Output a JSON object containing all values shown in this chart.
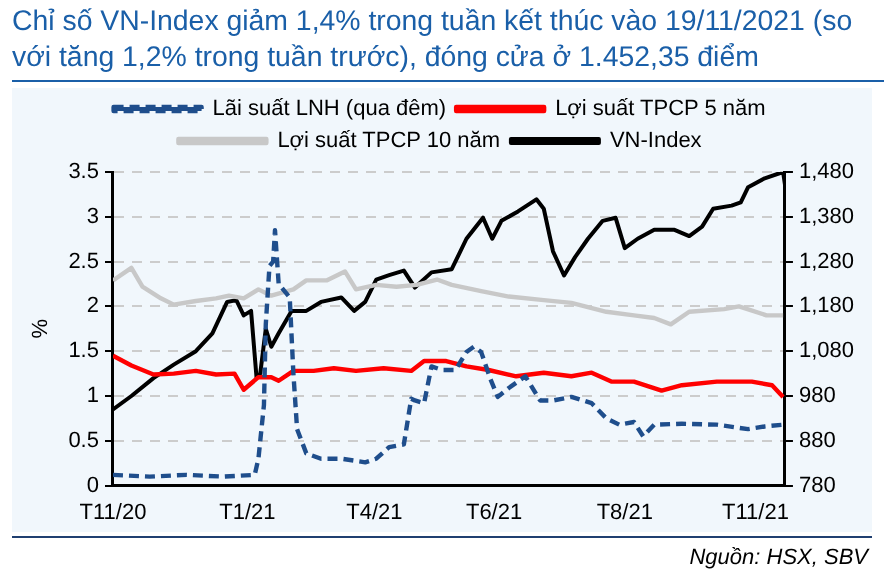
{
  "chart_data": {
    "type": "line",
    "title": "Chỉ số VN-Index giảm 1,4% trong tuần kết thúc vào 19/11/2021 (so với tăng 1,2% trong tuần trước), đóng cửa ở 1.452,35 điểm",
    "ylabel": "%",
    "annotations": [
      "Nguồn: HSX, SBV"
    ],
    "xlim": [
      "2020-11-19",
      "2021-11-19"
    ],
    "xticks": [
      {
        "value": "2020-11-19",
        "label": "T11/20"
      },
      {
        "value": "2021-01-31",
        "label": "T1/21"
      },
      {
        "value": "2021-04-10",
        "label": "T4/21"
      },
      {
        "value": "2021-06-14",
        "label": "T6/21"
      },
      {
        "value": "2021-08-24",
        "label": "T8/21"
      },
      {
        "value": "2021-11-03",
        "label": "T11/21"
      }
    ],
    "ylim": [
      0,
      3.5
    ],
    "yticks": [
      0,
      0.5,
      1,
      1.5,
      2,
      2.5,
      3,
      3.5
    ],
    "y2lim": [
      780,
      1480
    ],
    "y2ticks": [
      {
        "value": 780,
        "label": "780"
      },
      {
        "value": 880,
        "label": "880"
      },
      {
        "value": 980,
        "label": "980"
      },
      {
        "value": 1080,
        "label": "1,080"
      },
      {
        "value": 1180,
        "label": "1,180"
      },
      {
        "value": 1280,
        "label": "1,280"
      },
      {
        "value": 1380,
        "label": "1,380"
      },
      {
        "value": 1480,
        "label": "1,480"
      }
    ],
    "grid": "y",
    "legend": "top",
    "marker": "none",
    "series": [
      {
        "name": "Lãi suất LNH (qua đêm)",
        "color": "#1f4e8c",
        "line_style": "dashed",
        "x": [
          "2020-11-19",
          "2020-12-09",
          "2020-12-29",
          "2021-01-18",
          "2021-02-04",
          "2021-02-06",
          "2021-02-09",
          "2021-02-10",
          "2021-02-12",
          "2021-02-14",
          "2021-02-15",
          "2021-02-17",
          "2021-02-23",
          "2021-02-25",
          "2021-02-27",
          "2021-03-04",
          "2021-03-12",
          "2021-03-23",
          "2021-04-05",
          "2021-04-11",
          "2021-04-18",
          "2021-04-26",
          "2021-04-30",
          "2021-05-02",
          "2021-05-07",
          "2021-05-11",
          "2021-05-17",
          "2021-05-24",
          "2021-05-30",
          "2021-06-03",
          "2021-06-07",
          "2021-06-12",
          "2021-06-16",
          "2021-06-22",
          "2021-07-01",
          "2021-07-09",
          "2021-07-16",
          "2021-07-26",
          "2021-08-06",
          "2021-08-14",
          "2021-08-21",
          "2021-08-29",
          "2021-09-03",
          "2021-09-09",
          "2021-09-24",
          "2021-10-13",
          "2021-10-30",
          "2021-11-08",
          "2021-11-18"
        ],
        "values": [
          0.12,
          0.1,
          0.12,
          0.1,
          0.12,
          0.3,
          0.9,
          1.8,
          2.45,
          2.5,
          2.85,
          2.25,
          2.1,
          1.25,
          0.63,
          0.36,
          0.3,
          0.3,
          0.26,
          0.3,
          0.43,
          0.46,
          0.97,
          0.95,
          0.92,
          1.33,
          1.29,
          1.29,
          1.49,
          1.55,
          1.49,
          1.19,
          0.99,
          1.09,
          1.22,
          0.95,
          0.95,
          0.99,
          0.92,
          0.75,
          0.68,
          0.71,
          0.55,
          0.68,
          0.69,
          0.68,
          0.63,
          0.66,
          0.68
        ]
      },
      {
        "name": "Lợi suất TPCP 5 năm",
        "color": "#ff0000",
        "x": [
          "2020-11-19",
          "2020-11-29",
          "2020-12-11",
          "2020-12-22",
          "2021-01-03",
          "2021-01-14",
          "2021-01-24",
          "2021-01-29",
          "2021-02-06",
          "2021-02-13",
          "2021-02-17",
          "2021-02-25",
          "2021-03-08",
          "2021-03-19",
          "2021-03-31",
          "2021-04-15",
          "2021-04-30",
          "2021-05-07",
          "2021-05-19",
          "2021-05-30",
          "2021-06-11",
          "2021-06-26",
          "2021-07-11",
          "2021-07-26",
          "2021-08-06",
          "2021-08-17",
          "2021-08-29",
          "2021-09-13",
          "2021-09-24",
          "2021-10-13",
          "2021-11-01",
          "2021-11-12",
          "2021-11-18"
        ],
        "values": [
          1.45,
          1.34,
          1.24,
          1.25,
          1.28,
          1.24,
          1.25,
          1.07,
          1.21,
          1.21,
          1.17,
          1.28,
          1.28,
          1.31,
          1.28,
          1.31,
          1.28,
          1.39,
          1.39,
          1.33,
          1.29,
          1.22,
          1.26,
          1.22,
          1.26,
          1.16,
          1.16,
          1.06,
          1.12,
          1.16,
          1.16,
          1.12,
          0.99
        ]
      },
      {
        "name": "Lợi suất TPCP 10 năm",
        "color": "#c8c8c8",
        "x": [
          "2020-11-19",
          "2020-11-29",
          "2020-12-05",
          "2020-12-15",
          "2020-12-22",
          "2021-01-03",
          "2021-01-14",
          "2021-01-21",
          "2021-01-29",
          "2021-02-06",
          "2021-02-13",
          "2021-02-25",
          "2021-03-04",
          "2021-03-15",
          "2021-03-25",
          "2021-03-31",
          "2021-04-11",
          "2021-04-22",
          "2021-05-03",
          "2021-05-14",
          "2021-05-22",
          "2021-06-07",
          "2021-06-22",
          "2021-07-11",
          "2021-07-26",
          "2021-08-14",
          "2021-08-29",
          "2021-09-09",
          "2021-09-18",
          "2021-09-28",
          "2021-10-17",
          "2021-10-25",
          "2021-11-09",
          "2021-11-18"
        ],
        "values": [
          2.29,
          2.43,
          2.22,
          2.09,
          2.02,
          2.06,
          2.09,
          2.12,
          2.09,
          2.19,
          2.12,
          2.19,
          2.29,
          2.29,
          2.39,
          2.19,
          2.24,
          2.22,
          2.24,
          2.3,
          2.24,
          2.17,
          2.11,
          2.07,
          2.04,
          1.94,
          1.9,
          1.87,
          1.8,
          1.94,
          1.97,
          2.0,
          1.9,
          1.9
        ]
      },
      {
        "name": "VN-Index",
        "color": "#000000",
        "axis": "y2",
        "x": [
          "2020-11-19",
          "2020-11-29",
          "2020-12-11",
          "2020-12-22",
          "2021-01-03",
          "2021-01-12",
          "2021-01-20",
          "2021-01-25",
          "2021-01-29",
          "2021-02-02",
          "2021-02-05",
          "2021-02-07",
          "2021-02-10",
          "2021-02-13",
          "2021-02-17",
          "2021-02-24",
          "2021-03-04",
          "2021-03-12",
          "2021-03-23",
          "2021-03-30",
          "2021-04-05",
          "2021-04-11",
          "2021-04-18",
          "2021-04-26",
          "2021-05-02",
          "2021-05-11",
          "2021-05-22",
          "2021-05-30",
          "2021-06-08",
          "2021-06-13",
          "2021-06-18",
          "2021-06-27",
          "2021-07-07",
          "2021-07-11",
          "2021-07-16",
          "2021-07-22",
          "2021-07-28",
          "2021-08-04",
          "2021-08-12",
          "2021-08-19",
          "2021-08-24",
          "2021-08-31",
          "2021-09-09",
          "2021-09-20",
          "2021-09-28",
          "2021-10-05",
          "2021-10-11",
          "2021-10-21",
          "2021-10-26",
          "2021-10-30",
          "2021-11-08",
          "2021-11-18",
          "2021-11-19"
        ],
        "values": [
          950,
          980,
          1020,
          1050,
          1080,
          1120,
          1190,
          1194,
          1160,
          1170,
          1020,
          1030,
          1130,
          1090,
          1120,
          1170,
          1170,
          1190,
          1200,
          1170,
          1190,
          1240,
          1250,
          1260,
          1222,
          1256,
          1263,
          1331,
          1378,
          1331,
          1371,
          1392,
          1419,
          1398,
          1303,
          1249,
          1290,
          1331,
          1371,
          1378,
          1310,
          1331,
          1351,
          1351,
          1337,
          1358,
          1398,
          1405,
          1412,
          1446,
          1466,
          1480,
          1452
        ]
      }
    ]
  }
}
